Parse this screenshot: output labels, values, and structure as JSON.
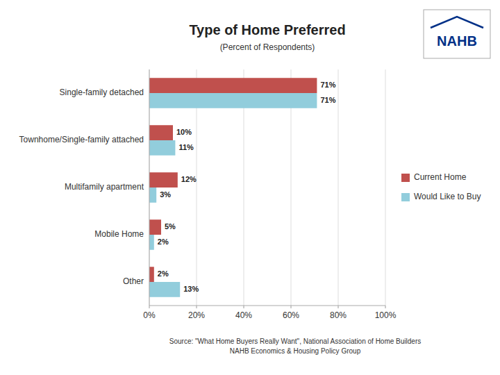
{
  "chart_data": {
    "type": "bar",
    "orientation": "horizontal",
    "title": "Type of Home Preferred",
    "subtitle": "(Percent of Respondents)",
    "categories": [
      "Single-family detached",
      "Townhome/Single-family attached",
      "Multifamily apartment",
      "Mobile Home",
      "Other"
    ],
    "series": [
      {
        "name": "Current Home",
        "color": "#C0504D",
        "values": [
          71,
          10,
          12,
          5,
          2
        ],
        "value_labels": [
          "71%",
          "10%",
          "12%",
          "5%",
          "2%"
        ]
      },
      {
        "name": "Would Like to Buy",
        "color": "#92CDDC",
        "values": [
          71,
          11,
          3,
          2,
          13
        ],
        "value_labels": [
          "71%",
          "11%",
          "3%",
          "2%",
          "13%"
        ]
      }
    ],
    "xlim": [
      0,
      100
    ],
    "xticks": [
      {
        "value": 0,
        "label": "0%"
      },
      {
        "value": 20,
        "label": "20%"
      },
      {
        "value": 40,
        "label": "40%"
      },
      {
        "value": 60,
        "label": "60%"
      },
      {
        "value": 80,
        "label": "80%"
      },
      {
        "value": 100,
        "label": "100%"
      }
    ],
    "grid": true,
    "legend": "right",
    "data_labels": true,
    "annotations": [
      "Source: \"What Home Buyers Really Want\", National Association of Home Builders",
      "NAHB Economics & Housing Policy Group",
      "NAHB"
    ]
  }
}
